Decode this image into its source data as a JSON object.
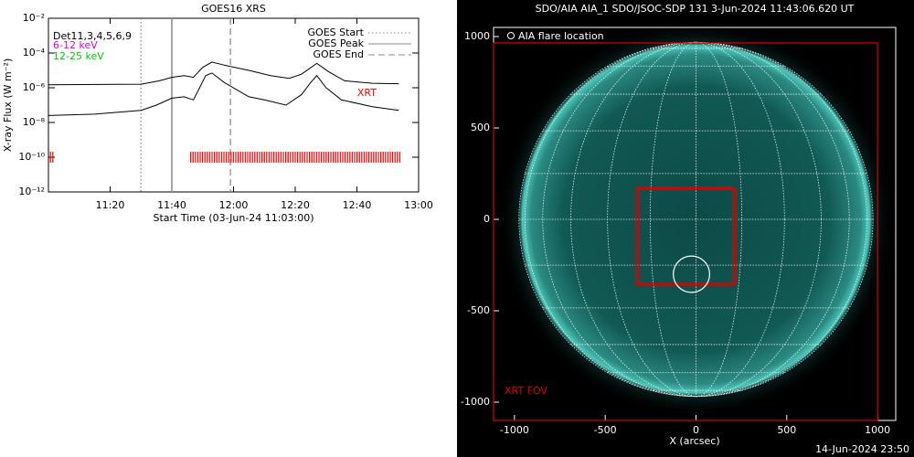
{
  "chart_data": [
    {
      "type": "line",
      "title": "GOES16 XRS",
      "xlabel": "Start Time (03-Jun-24 11:03:00)",
      "ylabel": "X-ray Flux (W m⁻²)",
      "log_y": true,
      "xlim": [
        660,
        780
      ],
      "ylim": [
        1e-12,
        0.01
      ],
      "xticks": [
        {
          "value": 680,
          "label": "11:20"
        },
        {
          "value": 700,
          "label": "11:40"
        },
        {
          "value": 720,
          "label": "12:00"
        },
        {
          "value": 740,
          "label": "12:20"
        },
        {
          "value": 760,
          "label": "12:40"
        },
        {
          "value": 780,
          "label": "13:00"
        }
      ],
      "yticks": [
        {
          "value": 1e-12,
          "label": "10⁻¹²"
        },
        {
          "value": 1e-10,
          "label": "10⁻¹⁰"
        },
        {
          "value": 1e-08,
          "label": "10⁻⁸"
        },
        {
          "value": 1e-06,
          "label": "10⁻⁶"
        },
        {
          "value": 0.0001,
          "label": "10⁻⁴"
        },
        {
          "value": 0.01,
          "label": "10⁻²"
        }
      ],
      "series": [
        {
          "color": "#000000",
          "x": [
            660,
            690,
            696,
            700,
            704,
            707,
            710,
            713,
            717,
            725,
            732,
            738,
            742,
            747,
            751,
            756,
            765,
            773.6
          ],
          "values": [
            1.5e-06,
            1.6e-06,
            2.5e-06,
            4e-06,
            5e-06,
            4e-06,
            1.5e-05,
            3e-05,
            2e-05,
            1e-05,
            5e-06,
            3.5e-06,
            6e-06,
            2.5e-05,
            8e-06,
            2.5e-06,
            1.8e-06,
            1.7e-06
          ]
        },
        {
          "color": "#000000",
          "x": [
            660,
            675,
            690,
            695,
            700,
            704,
            707,
            709,
            711,
            713,
            717,
            725,
            730,
            737,
            742,
            745,
            747,
            750,
            755,
            765,
            773.6
          ],
          "values": [
            2.5e-08,
            3e-08,
            5e-08,
            1e-07,
            2.5e-07,
            3e-07,
            2e-07,
            1e-06,
            5e-06,
            7e-06,
            2e-06,
            3e-07,
            2e-07,
            1e-07,
            4e-07,
            2e-06,
            5e-06,
            1e-06,
            2e-07,
            8e-08,
            5e-08
          ]
        }
      ],
      "events": [
        {
          "name": "GOES Start",
          "x": 690,
          "color": "#888888",
          "style": "dotted"
        },
        {
          "name": "GOES Peak",
          "x": 700,
          "color": "#888888",
          "style": "solid"
        },
        {
          "name": "GOES End",
          "x": 719,
          "color": "#888888",
          "style": "dashed"
        }
      ],
      "annotations": [
        {
          "text": "Det11,3,4,5,6,9",
          "color": "#000000"
        },
        {
          "text": "6-12 keV",
          "color": "#dd00dd"
        },
        {
          "text": "12-25 keV",
          "color": "#00cc00"
        },
        {
          "text": "XRT",
          "color": "#ff0000"
        }
      ],
      "xrt_intervals": [
        {
          "start": 660.3,
          "end": 661.8
        },
        {
          "start": 705.5,
          "end": 774.2
        }
      ],
      "xrt_level": 1e-10,
      "xrt_color": "#ff0000"
    },
    {
      "type": "image",
      "title": "SDO/AIA AIA_1 SDO/JSOC-SDP 131  3-Jun-2024 11:43:06.620 UT",
      "xlabel": "X (arcsec)",
      "xlim": [
        -1115,
        1100
      ],
      "ylim": [
        -1100,
        1050
      ],
      "xticks": [
        -1000,
        -500,
        0,
        500,
        1000
      ],
      "yticks": [
        -1000,
        -500,
        0,
        500,
        1000
      ],
      "solar_radius": 975,
      "fov": {
        "label": "XRT FOV",
        "x0": -1115,
        "x1": 1000,
        "y0": -1100,
        "y1": 965,
        "color": "#dd0000"
      },
      "boxes": [
        {
          "x0": -330,
          "x1": 205,
          "y0": -360,
          "y1": 175
        },
        {
          "x0": -315,
          "x1": 220,
          "y0": -350,
          "y1": 165
        }
      ],
      "flare": {
        "label": "AIA flare location",
        "x": -25,
        "y": -300,
        "r": 100
      },
      "timestamp": "14-Jun-2024 23:50"
    }
  ]
}
